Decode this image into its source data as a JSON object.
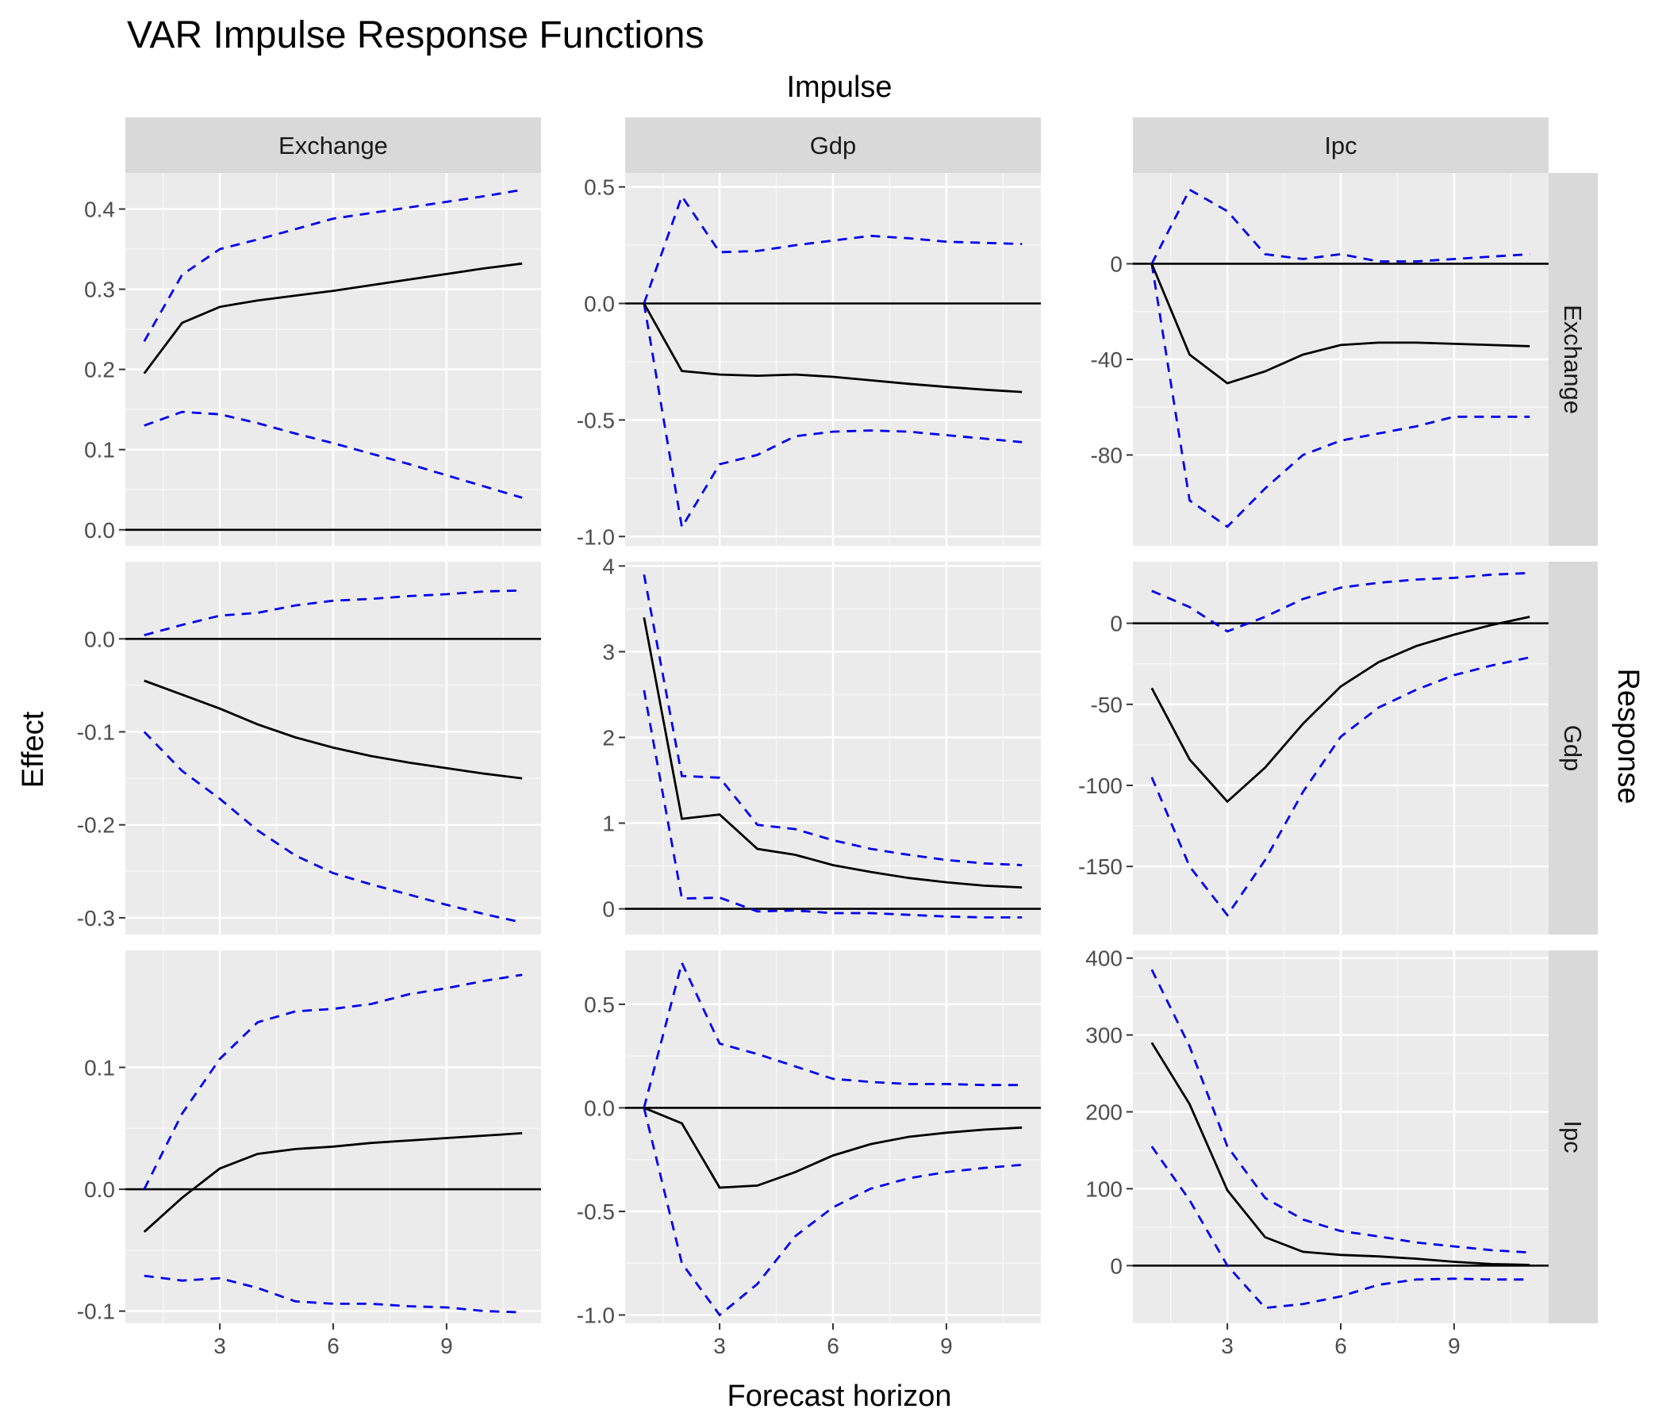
{
  "chart_data": {
    "type": "line",
    "title": "VAR Impulse Response Functions",
    "facet_col_title": "Impulse",
    "facet_row_title": "Response",
    "xlabel": "Forecast horizon",
    "ylabel": "Effect",
    "impulses": [
      "Exchange",
      "Gdp",
      "Ipc"
    ],
    "responses": [
      "Exchange",
      "Gdp",
      "Ipc"
    ],
    "x": [
      1,
      2,
      3,
      4,
      5,
      6,
      7,
      8,
      9,
      10,
      11
    ],
    "x_ticks": [
      3,
      6,
      9
    ],
    "xlim": [
      0.5,
      11.5
    ],
    "grid": true,
    "series_styles": {
      "irf": {
        "color": "#000000",
        "dash": "solid"
      },
      "bands": {
        "color": "#0000ee",
        "dash": "dashed"
      }
    },
    "panels": [
      {
        "response": "Exchange",
        "impulse": "Exchange",
        "ylim": [
          -0.02,
          0.445
        ],
        "yticks": [
          0.0,
          0.1,
          0.2,
          0.3,
          0.4
        ],
        "tick_labels": [
          "0.0",
          "0.1",
          "0.2",
          "0.3",
          "0.4"
        ],
        "irf": [
          0.195,
          0.258,
          0.278,
          0.286,
          0.292,
          0.298,
          0.305,
          0.312,
          0.319,
          0.326,
          0.332
        ],
        "lower": [
          0.13,
          0.147,
          0.144,
          0.133,
          0.12,
          0.108,
          0.095,
          0.082,
          0.068,
          0.054,
          0.04
        ],
        "upper": [
          0.235,
          0.318,
          0.35,
          0.362,
          0.375,
          0.388,
          0.395,
          0.402,
          0.409,
          0.416,
          0.424
        ]
      },
      {
        "response": "Exchange",
        "impulse": "Gdp",
        "ylim": [
          -1.04,
          0.56
        ],
        "yticks": [
          -1.0,
          -0.5,
          0.0,
          0.5
        ],
        "tick_labels": [
          "-1.0",
          "-0.5",
          "0.0",
          "0.5"
        ],
        "irf": [
          0.0,
          -0.29,
          -0.305,
          -0.31,
          -0.305,
          -0.315,
          -0.33,
          -0.345,
          -0.358,
          -0.37,
          -0.38
        ],
        "lower": [
          0.0,
          -0.96,
          -0.69,
          -0.65,
          -0.57,
          -0.55,
          -0.545,
          -0.55,
          -0.565,
          -0.58,
          -0.595
        ],
        "upper": [
          0.0,
          0.46,
          0.22,
          0.225,
          0.25,
          0.27,
          0.29,
          0.28,
          0.265,
          0.26,
          0.255
        ]
      },
      {
        "response": "Exchange",
        "impulse": "Ipc",
        "ylim": [
          -118,
          38
        ],
        "yticks": [
          -80,
          -40,
          0
        ],
        "tick_labels": [
          "-80",
          "-40",
          "0"
        ],
        "irf": [
          0.0,
          -38.0,
          -50.0,
          -45.0,
          -38.0,
          -34.0,
          -33.0,
          -33.0,
          -33.5,
          -34.0,
          -34.5
        ],
        "lower": [
          0.0,
          -99.0,
          -110.0,
          -94.0,
          -80.0,
          -74.0,
          -71.0,
          -68.0,
          -64.0,
          -64.0,
          -64.0
        ],
        "upper": [
          0.0,
          31.0,
          22.0,
          4.0,
          2.0,
          4.0,
          1.0,
          1.0,
          2.0,
          3.0,
          4.0
        ]
      },
      {
        "response": "Gdp",
        "impulse": "Exchange",
        "ylim": [
          -0.318,
          0.083
        ],
        "yticks": [
          -0.3,
          -0.2,
          -0.1,
          0.0
        ],
        "tick_labels": [
          "-0.3",
          "-0.2",
          "-0.1",
          "0.0"
        ],
        "irf": [
          -0.045,
          -0.06,
          -0.075,
          -0.092,
          -0.106,
          -0.117,
          -0.126,
          -0.133,
          -0.139,
          -0.145,
          -0.15
        ],
        "lower": [
          -0.1,
          -0.142,
          -0.172,
          -0.206,
          -0.233,
          -0.252,
          -0.264,
          -0.275,
          -0.286,
          -0.296,
          -0.305
        ],
        "upper": [
          0.004,
          0.015,
          0.025,
          0.028,
          0.036,
          0.041,
          0.043,
          0.046,
          0.048,
          0.051,
          0.052
        ]
      },
      {
        "response": "Gdp",
        "impulse": "Gdp",
        "ylim": [
          -0.3,
          4.05
        ],
        "yticks": [
          0,
          1,
          2,
          3,
          4
        ],
        "tick_labels": [
          "0",
          "1",
          "2",
          "3",
          "4"
        ],
        "irf": [
          3.4,
          1.05,
          1.1,
          0.7,
          0.63,
          0.51,
          0.43,
          0.36,
          0.31,
          0.27,
          0.25
        ],
        "lower": [
          2.55,
          0.12,
          0.13,
          -0.03,
          -0.02,
          -0.05,
          -0.05,
          -0.07,
          -0.09,
          -0.1,
          -0.1
        ],
        "upper": [
          3.9,
          1.55,
          1.53,
          0.98,
          0.93,
          0.8,
          0.7,
          0.63,
          0.57,
          0.53,
          0.51
        ]
      },
      {
        "response": "Gdp",
        "impulse": "Ipc",
        "ylim": [
          -192,
          38
        ],
        "yticks": [
          -150,
          -100,
          -50,
          0
        ],
        "tick_labels": [
          "-150",
          "-100",
          "-50",
          "0"
        ],
        "irf": [
          -40.0,
          -84.0,
          -110.0,
          -89.0,
          -62.0,
          -39.0,
          -24.0,
          -14.0,
          -7.0,
          -1.0,
          4.0
        ],
        "lower": [
          -95.0,
          -150.0,
          -180.0,
          -146.0,
          -104.0,
          -70.0,
          -52.0,
          -41.0,
          -32.0,
          -26.0,
          -21.0
        ],
        "upper": [
          20.0,
          10.0,
          -5.0,
          4.0,
          15.0,
          22.0,
          25.0,
          27.0,
          28.0,
          30.0,
          31.0
        ]
      },
      {
        "response": "Ipc",
        "impulse": "Exchange",
        "ylim": [
          -0.11,
          0.196
        ],
        "yticks": [
          -0.1,
          0.0,
          0.1
        ],
        "tick_labels": [
          "-0.1",
          "0.0",
          "0.1"
        ],
        "irf": [
          -0.035,
          -0.007,
          0.017,
          0.029,
          0.033,
          0.035,
          0.038,
          0.04,
          0.042,
          0.044,
          0.046
        ],
        "lower": [
          -0.071,
          -0.075,
          -0.073,
          -0.081,
          -0.092,
          -0.094,
          -0.094,
          -0.096,
          -0.097,
          -0.1,
          -0.101
        ],
        "upper": [
          0.0,
          0.062,
          0.107,
          0.137,
          0.146,
          0.148,
          0.152,
          0.16,
          0.165,
          0.171,
          0.176
        ]
      },
      {
        "response": "Ipc",
        "impulse": "Gdp",
        "ylim": [
          -1.04,
          0.76
        ],
        "yticks": [
          -1.0,
          -0.5,
          0.0,
          0.5
        ],
        "tick_labels": [
          "-1.0",
          "-0.5",
          "0.0",
          "0.5"
        ],
        "irf": [
          0.0,
          -0.075,
          -0.385,
          -0.375,
          -0.31,
          -0.23,
          -0.175,
          -0.14,
          -0.12,
          -0.105,
          -0.095
        ],
        "lower": [
          0.0,
          -0.75,
          -1.0,
          -0.85,
          -0.62,
          -0.48,
          -0.39,
          -0.34,
          -0.31,
          -0.29,
          -0.275
        ],
        "upper": [
          0.0,
          0.7,
          0.31,
          0.26,
          0.2,
          0.14,
          0.125,
          0.115,
          0.115,
          0.11,
          0.11
        ]
      },
      {
        "response": "Ipc",
        "impulse": "Ipc",
        "ylim": [
          -75,
          410
        ],
        "yticks": [
          0,
          100,
          200,
          300,
          400
        ],
        "tick_labels": [
          "0",
          "100",
          "200",
          "300",
          "400"
        ],
        "irf": [
          290.0,
          210.0,
          98.0,
          37.0,
          18.0,
          14.0,
          12.0,
          9.0,
          5.0,
          2.0,
          1.0
        ],
        "lower": [
          155.0,
          85.0,
          0.0,
          -55.0,
          -50.0,
          -40.0,
          -25.0,
          -18.0,
          -17.0,
          -18.0,
          -18.0
        ],
        "upper": [
          385.0,
          285.0,
          155.0,
          88.0,
          60.0,
          45.0,
          38.0,
          30.0,
          25.0,
          20.0,
          17.0
        ]
      }
    ]
  }
}
